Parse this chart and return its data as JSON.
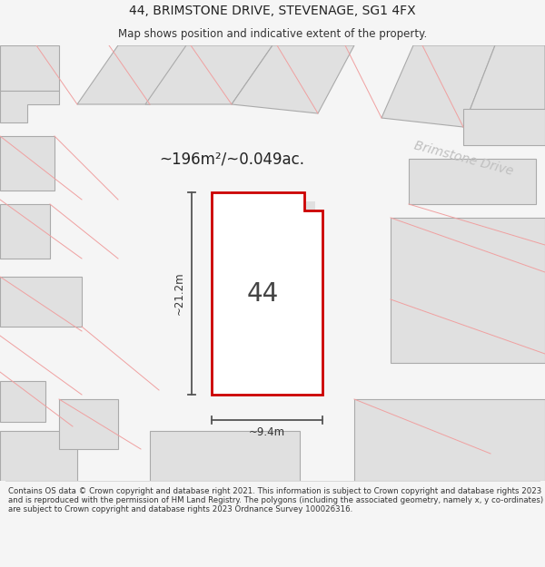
{
  "title": "44, BRIMSTONE DRIVE, STEVENAGE, SG1 4FX",
  "subtitle": "Map shows position and indicative extent of the property.",
  "footer": "Contains OS data © Crown copyright and database right 2021. This information is subject to Crown copyright and database rights 2023 and is reproduced with the permission of HM Land Registry. The polygons (including the associated geometry, namely x, y co-ordinates) are subject to Crown copyright and database rights 2023 Ordnance Survey 100026316.",
  "area_label": "~196m²/~0.049ac.",
  "width_label": "~9.4m",
  "height_label": "~21.2m",
  "street_label": "Brimstone Drive",
  "plot_number": "44",
  "bg_color": "#f5f5f5",
  "map_bg": "#ffffff",
  "plot_fill": "#ffffff",
  "plot_border": "#cc0000",
  "neighbor_fill": "#e0e0e0",
  "neighbor_border_light": "#f0a0a0",
  "neighbor_border_dark": "#aaaaaa",
  "dim_line_color": "#555555",
  "title_fontsize": 10,
  "subtitle_fontsize": 8.5,
  "footer_fontsize": 6.2
}
